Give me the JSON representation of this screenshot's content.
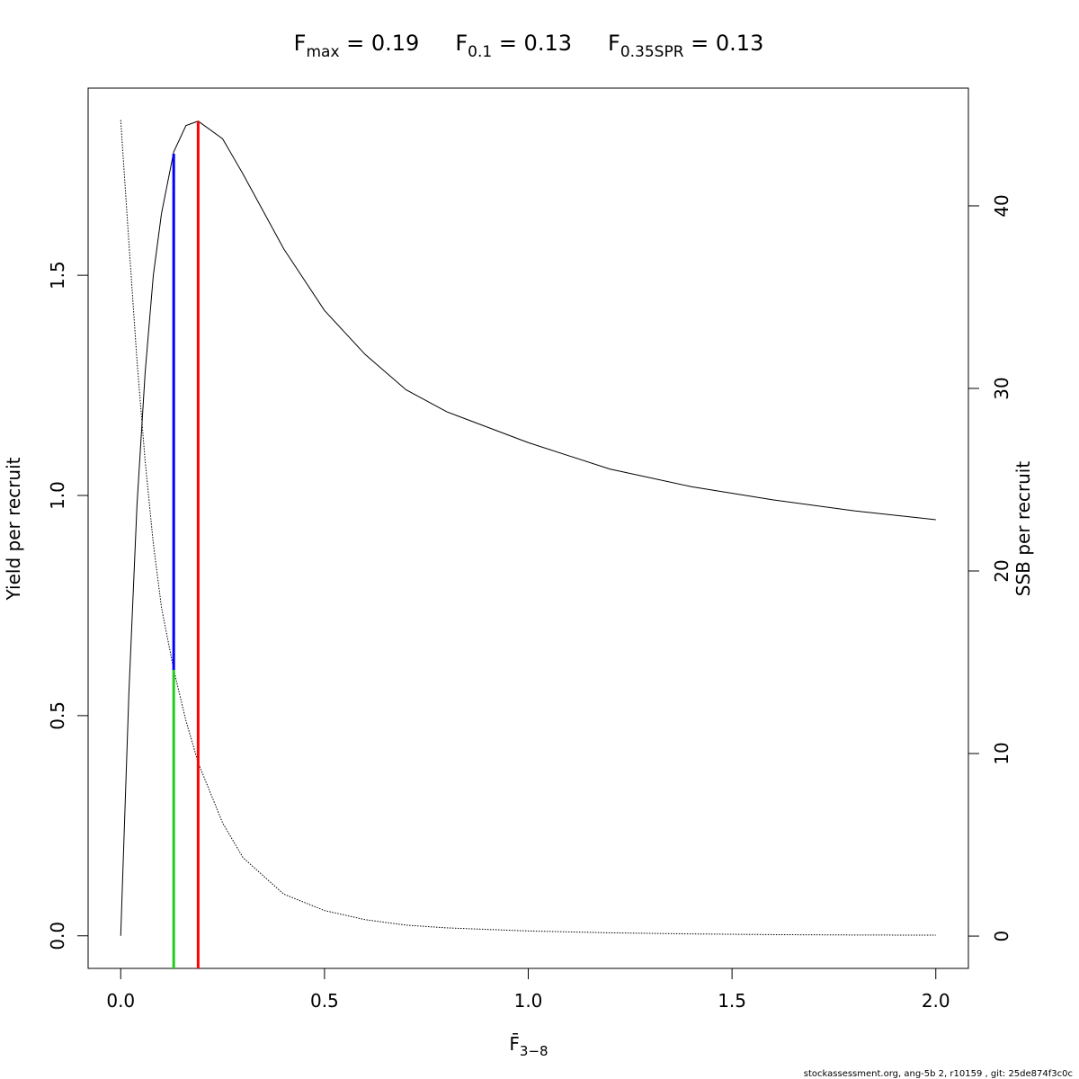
{
  "chart_data": {
    "type": "line",
    "title": [
      {
        "symbol": "F",
        "subscript": "max",
        "text": " = 0.19"
      },
      {
        "symbol": "F",
        "subscript": "0.1",
        "text": " = 0.13"
      },
      {
        "symbol": "F",
        "subscript": "0.35SPR",
        "text": " = 0.13"
      }
    ],
    "xlabel": {
      "symbol": "F̄",
      "subscript": "3−8"
    },
    "ylabel": "Yield per recruit",
    "y2label": "SSB per recruit",
    "footer": "stockassessment.org, ang-5b  2, r10159 , git: 25de874f3c0c",
    "x": [
      0,
      0.02,
      0.04,
      0.06,
      0.08,
      0.1,
      0.13,
      0.16,
      0.19,
      0.25,
      0.3,
      0.4,
      0.5,
      0.6,
      0.7,
      0.8,
      1.0,
      1.2,
      1.4,
      1.6,
      1.8,
      2.0
    ],
    "series": [
      {
        "color": "#000000",
        "style": "solid",
        "axis": "y",
        "values": [
          0,
          0.55,
          0.98,
          1.28,
          1.5,
          1.64,
          1.78,
          1.84,
          1.85,
          1.81,
          1.73,
          1.56,
          1.42,
          1.32,
          1.24,
          1.19,
          1.12,
          1.06,
          1.02,
          0.99,
          0.965,
          0.945
        ]
      },
      {
        "color": "#000000",
        "style": "dotted",
        "axis": "y2",
        "values": [
          44.7,
          38,
          31.5,
          26,
          21.5,
          18,
          14.6,
          11.8,
          9.5,
          6.2,
          4.3,
          2.3,
          1.4,
          0.9,
          0.6,
          0.45,
          0.28,
          0.18,
          0.12,
          0.08,
          0.06,
          0.05
        ]
      }
    ],
    "ref_lines": [
      {
        "x": 0.13,
        "y_from": 0.604,
        "y_to": 1.776,
        "color": "#0000ff"
      },
      {
        "x": 0.13,
        "y_to": 0.604,
        "color": "#22cc22"
      },
      {
        "x": 0.19,
        "y_to": 1.85,
        "color": "#ff0000"
      }
    ],
    "xlim": [
      -0.08,
      2.08
    ],
    "ylim": [
      -0.074,
      1.925
    ],
    "y2lim": [
      -1.77,
      46.45
    ],
    "xticks": [
      {
        "value": 0,
        "label": "0.0"
      },
      0.5,
      {
        "value": 1,
        "label": "1.0"
      },
      1.5,
      {
        "value": 2,
        "label": "2.0"
      }
    ],
    "yticks": [
      {
        "value": 0,
        "label": "0.0"
      },
      0.5,
      {
        "value": 1,
        "label": "1.0"
      },
      1.5
    ],
    "y2ticks": [
      0,
      10,
      20,
      30,
      40
    ]
  }
}
